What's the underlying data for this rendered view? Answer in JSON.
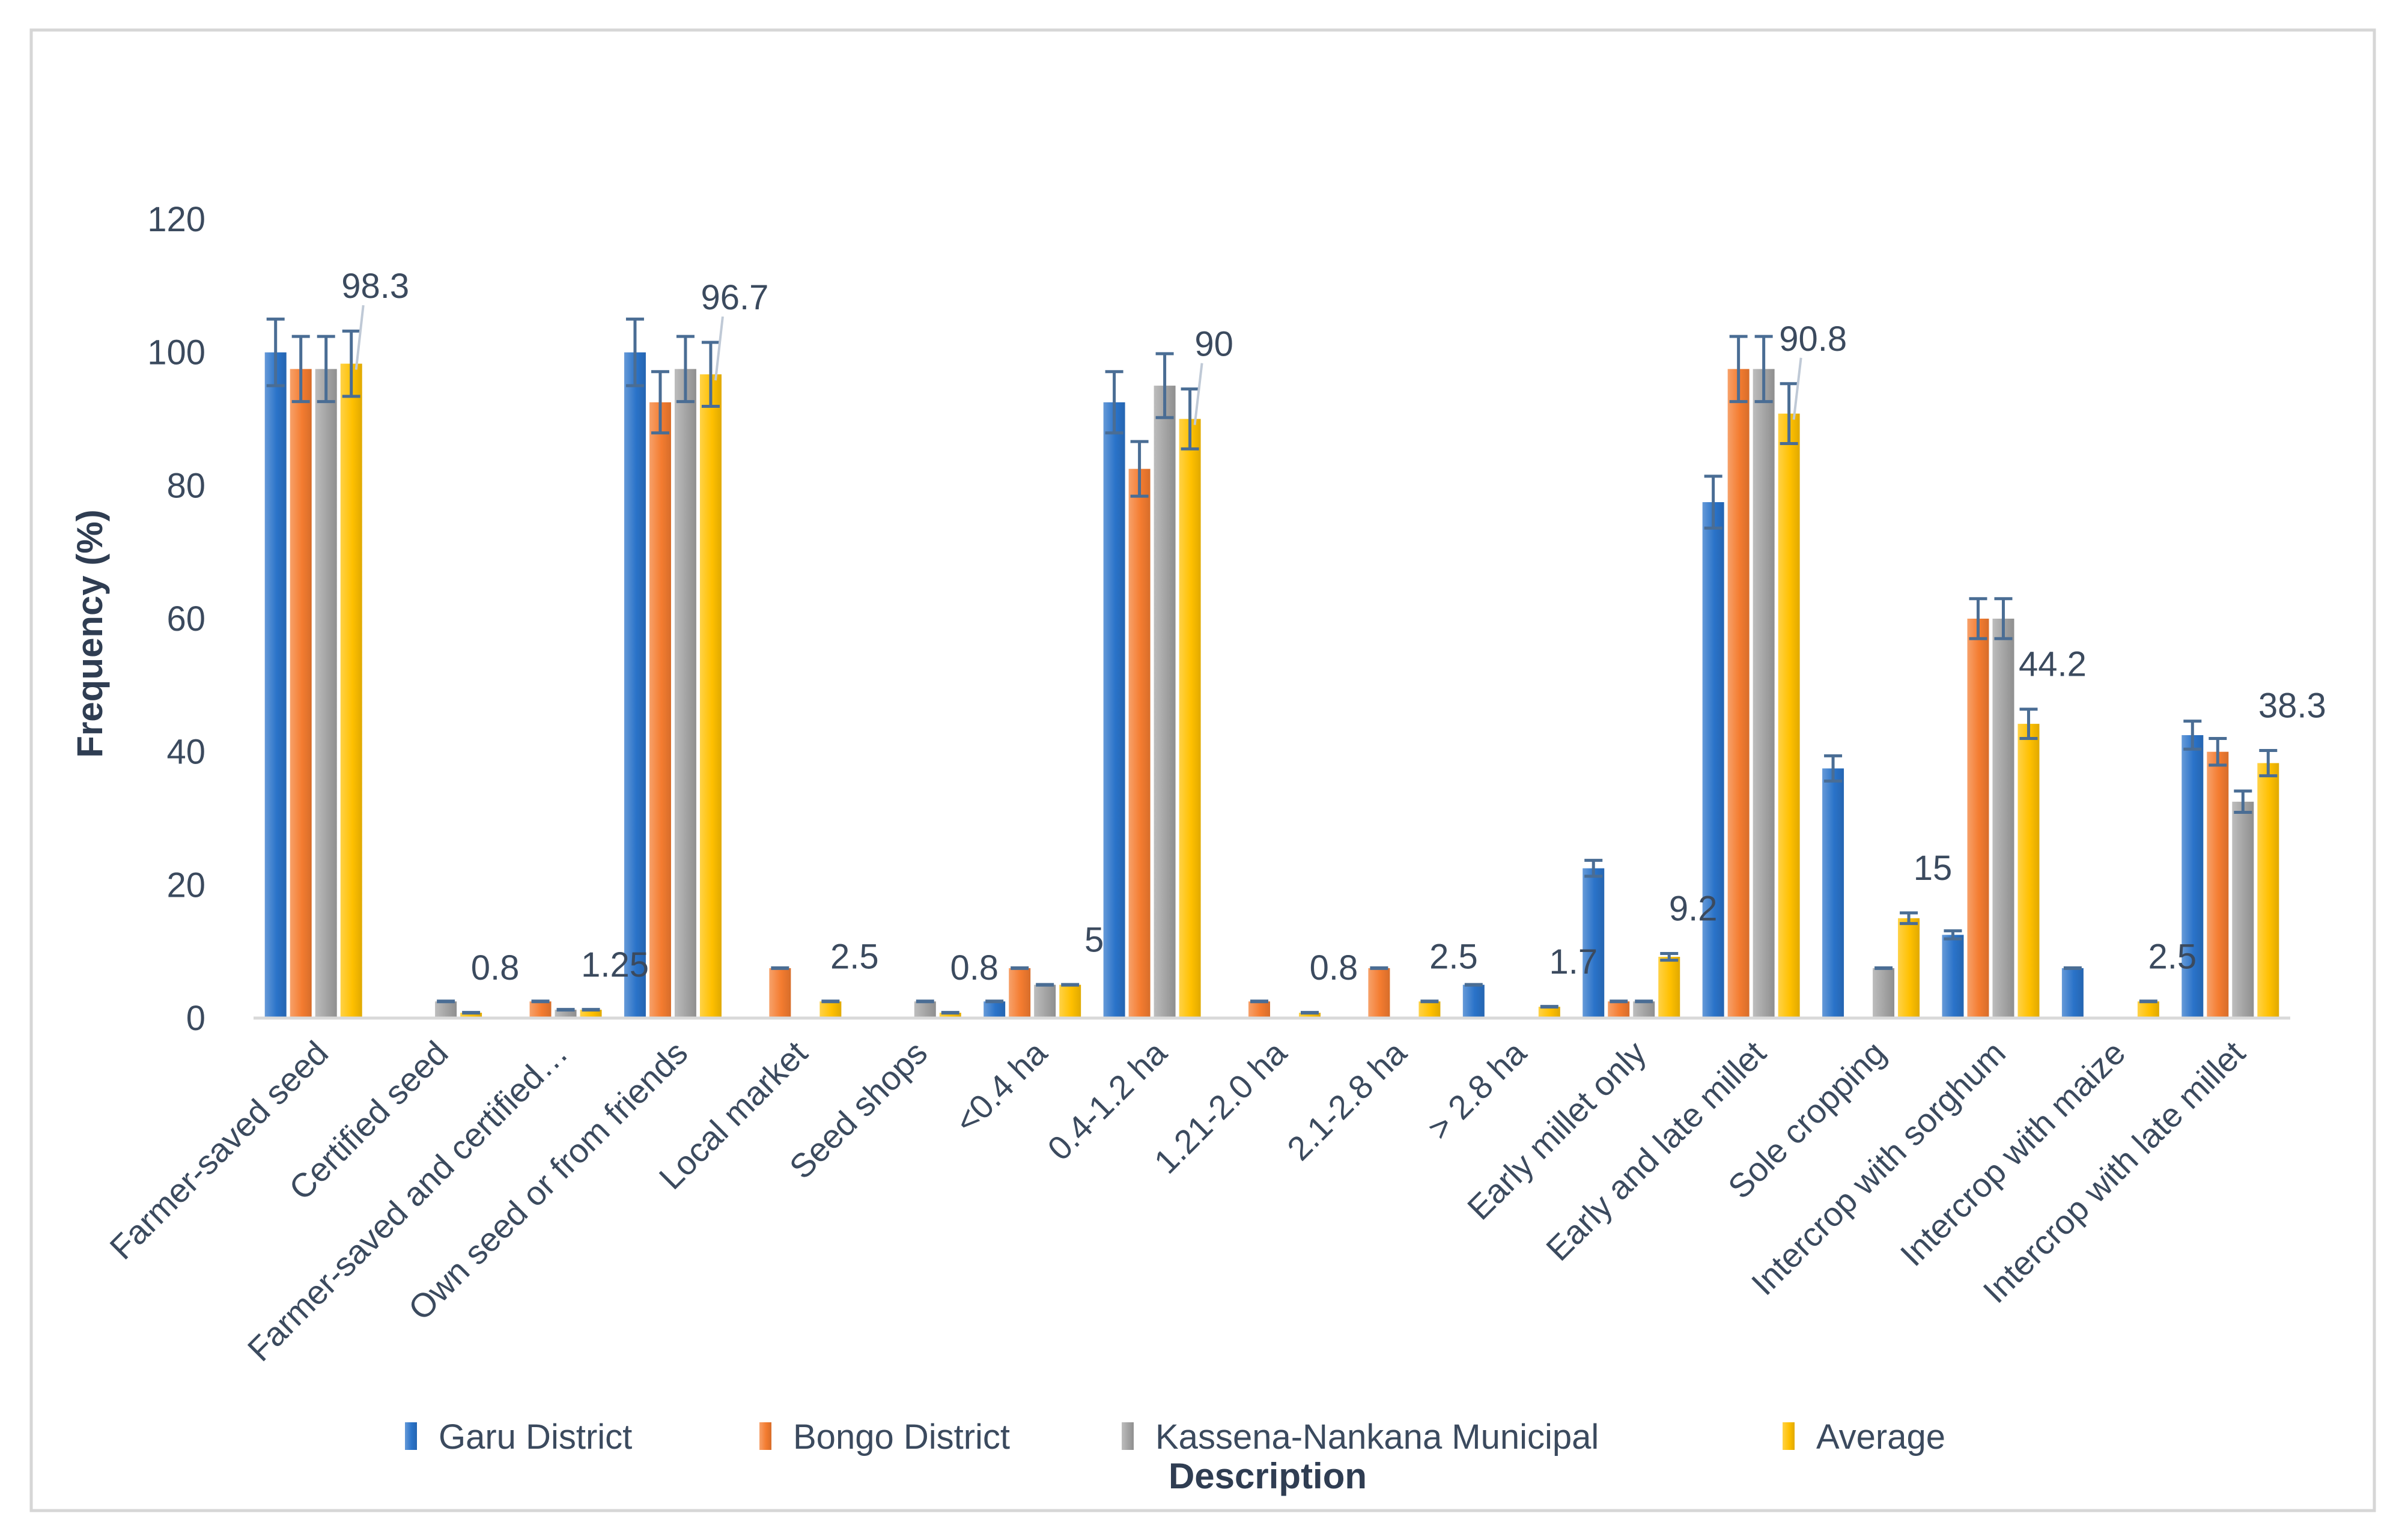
{
  "chart_data": {
    "type": "bar",
    "title": "",
    "xlabel": "Description",
    "ylabel": "Frequency (%)",
    "ylim": [
      0,
      120
    ],
    "yticks": [
      0,
      20,
      40,
      60,
      80,
      100,
      120
    ],
    "grid": false,
    "legend_position": "bottom",
    "categories": [
      "Farmer-saved seed",
      "Certified seed",
      "Farmer-saved and certified…",
      "Own seed or from friends",
      "Local market",
      "Seed shops",
      "<0.4 ha",
      "0.4-1.2 ha",
      "1.21-2.0 ha",
      "2.1-2.8 ha",
      "> 2.8 ha",
      "Early millet only",
      "Early and late millet",
      "Sole cropping",
      "Intercrop with sorghum",
      "Intercrop with maize",
      "Intercrop with late millet"
    ],
    "series": [
      {
        "name": "Garu District",
        "color": "#2a73c9",
        "values": [
          100,
          0,
          0,
          100,
          0,
          0,
          2.5,
          92.5,
          0,
          0,
          5,
          22.5,
          77.5,
          37.5,
          12.5,
          7.5,
          42.5
        ],
        "errors": [
          5,
          0,
          0,
          5,
          0,
          0,
          0,
          4.6,
          0,
          0,
          0,
          1.2,
          3.9,
          1.9,
          0.6,
          0,
          2.1
        ]
      },
      {
        "name": "Bongo District",
        "color": "#f47c30",
        "values": [
          97.5,
          0,
          2.5,
          92.5,
          7.5,
          0,
          7.5,
          82.5,
          2.5,
          7.5,
          0,
          2.5,
          97.5,
          0,
          60,
          0,
          40
        ],
        "errors": [
          4.9,
          0,
          0,
          4.6,
          0,
          0,
          0,
          4.1,
          0,
          0,
          0,
          0,
          4.9,
          0,
          3,
          0,
          2
        ]
      },
      {
        "name": "Kassena-Nankana Municipal",
        "color": "#a3a3a3",
        "values": [
          97.5,
          2.5,
          1.25,
          97.5,
          0,
          2.5,
          5,
          95,
          0,
          0,
          0,
          2.5,
          97.5,
          7.5,
          60,
          0,
          32.5
        ],
        "errors": [
          4.9,
          0,
          0,
          4.9,
          0,
          0,
          0,
          4.8,
          0,
          0,
          0,
          0,
          4.9,
          0,
          3,
          0,
          1.6
        ]
      },
      {
        "name": "Average",
        "color": "#ffc000",
        "values": [
          98.3,
          0.8,
          1.25,
          96.7,
          2.5,
          0.8,
          5,
          90,
          0.8,
          2.5,
          1.7,
          9.2,
          90.8,
          15,
          44.2,
          2.5,
          38.3
        ],
        "errors": [
          4.9,
          0,
          0,
          4.8,
          0,
          0,
          0,
          4.5,
          0,
          0,
          0,
          0.5,
          4.5,
          0.8,
          2.2,
          0,
          1.9
        ]
      }
    ],
    "data_labels": [
      "98.3",
      "0.8",
      "1.25",
      "96.7",
      "2.5",
      "0.8",
      "5",
      "90",
      "0.8",
      "2.5",
      "1.7",
      "9.2",
      "90.8",
      "15",
      "44.2",
      "2.5",
      "38.3"
    ]
  }
}
